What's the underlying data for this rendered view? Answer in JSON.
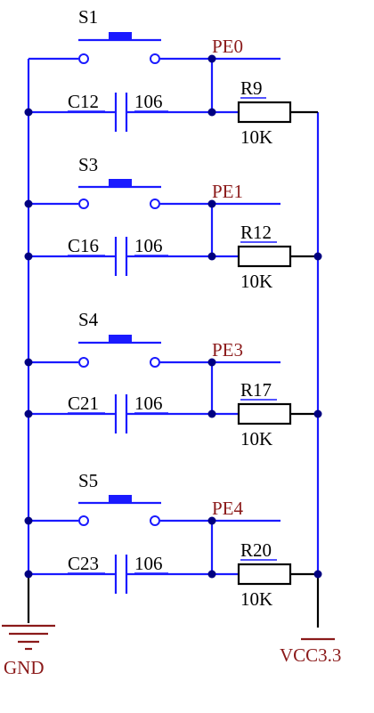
{
  "colors": {
    "wire": "#1a1aff",
    "component": "#000000",
    "net_label": "#8b1a1a",
    "junction": "#000080",
    "background": "#ffffff"
  },
  "groups": [
    {
      "switch": "S1",
      "net": "PE0",
      "capacitor": "C12",
      "cap_value": "106",
      "resistor": "R9",
      "res_value": "10K"
    },
    {
      "switch": "S3",
      "net": "PE1",
      "capacitor": "C16",
      "cap_value": "106",
      "resistor": "R12",
      "res_value": "10K"
    },
    {
      "switch": "S4",
      "net": "PE3",
      "capacitor": "C21",
      "cap_value": "106",
      "resistor": "R17",
      "res_value": "10K"
    },
    {
      "switch": "S5",
      "net": "PE4",
      "capacitor": "C23",
      "cap_value": "106",
      "resistor": "R20",
      "res_value": "10K"
    }
  ],
  "power": {
    "ground_label": "GND",
    "vcc_label": "VCC3.3"
  }
}
